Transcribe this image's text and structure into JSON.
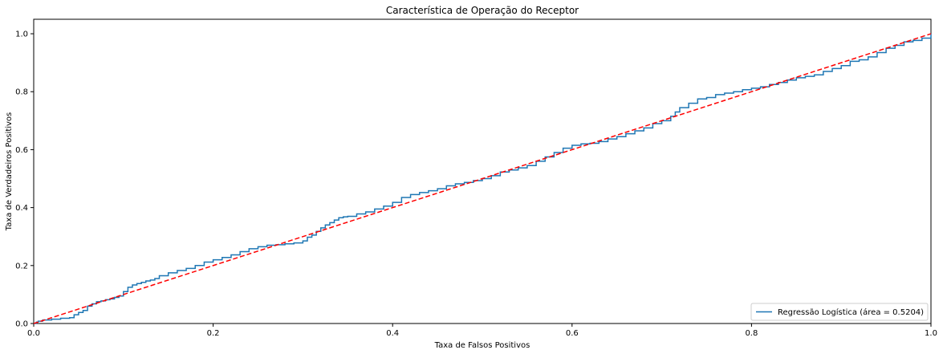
{
  "chart_data": {
    "type": "line",
    "title": "Característica de Operação do Receptor",
    "xlabel": "Taxa de Falsos Positivos",
    "ylabel": "Taxa de Verdadeiros Positivos",
    "xlim": [
      0.0,
      1.0
    ],
    "ylim": [
      0.0,
      1.05
    ],
    "xticks": [
      0.0,
      0.2,
      0.4,
      0.6,
      0.8,
      1.0
    ],
    "xtick_labels": [
      "0.0",
      "0.2",
      "0.4",
      "0.6",
      "0.8",
      "1.0"
    ],
    "yticks": [
      0.0,
      0.2,
      0.4,
      0.6,
      0.8,
      1.0
    ],
    "ytick_labels": [
      "0.0",
      "0.2",
      "0.4",
      "0.6",
      "0.8",
      "1.0"
    ],
    "grid": false,
    "legend_position": "lower right",
    "series": [
      {
        "name": "Regressão Logística (área = 0.5204)",
        "color": "#1f77b4",
        "style": "solid",
        "x": [
          0.0,
          0.003,
          0.005,
          0.01,
          0.02,
          0.03,
          0.04,
          0.045,
          0.05,
          0.055,
          0.06,
          0.065,
          0.07,
          0.075,
          0.08,
          0.085,
          0.09,
          0.095,
          0.1,
          0.105,
          0.11,
          0.115,
          0.12,
          0.125,
          0.13,
          0.135,
          0.14,
          0.15,
          0.16,
          0.17,
          0.18,
          0.19,
          0.2,
          0.21,
          0.22,
          0.23,
          0.24,
          0.25,
          0.26,
          0.27,
          0.28,
          0.29,
          0.3,
          0.305,
          0.31,
          0.315,
          0.32,
          0.325,
          0.33,
          0.335,
          0.34,
          0.345,
          0.35,
          0.36,
          0.37,
          0.38,
          0.39,
          0.4,
          0.41,
          0.42,
          0.43,
          0.44,
          0.45,
          0.46,
          0.47,
          0.48,
          0.49,
          0.5,
          0.51,
          0.52,
          0.53,
          0.54,
          0.55,
          0.56,
          0.57,
          0.58,
          0.59,
          0.6,
          0.61,
          0.62,
          0.63,
          0.64,
          0.65,
          0.66,
          0.67,
          0.68,
          0.69,
          0.7,
          0.71,
          0.715,
          0.72,
          0.73,
          0.74,
          0.75,
          0.76,
          0.77,
          0.78,
          0.79,
          0.8,
          0.81,
          0.82,
          0.83,
          0.84,
          0.85,
          0.86,
          0.87,
          0.88,
          0.89,
          0.9,
          0.91,
          0.92,
          0.93,
          0.94,
          0.95,
          0.96,
          0.97,
          0.98,
          0.99,
          1.0
        ],
        "y": [
          0.0,
          0.005,
          0.008,
          0.012,
          0.015,
          0.018,
          0.02,
          0.03,
          0.038,
          0.045,
          0.06,
          0.068,
          0.075,
          0.078,
          0.082,
          0.085,
          0.09,
          0.095,
          0.11,
          0.125,
          0.133,
          0.138,
          0.142,
          0.147,
          0.15,
          0.155,
          0.165,
          0.175,
          0.183,
          0.19,
          0.2,
          0.212,
          0.22,
          0.228,
          0.237,
          0.248,
          0.258,
          0.265,
          0.27,
          0.272,
          0.275,
          0.278,
          0.285,
          0.298,
          0.305,
          0.318,
          0.33,
          0.34,
          0.348,
          0.357,
          0.365,
          0.368,
          0.37,
          0.378,
          0.385,
          0.395,
          0.405,
          0.418,
          0.435,
          0.445,
          0.452,
          0.458,
          0.465,
          0.475,
          0.482,
          0.487,
          0.493,
          0.5,
          0.51,
          0.523,
          0.53,
          0.537,
          0.545,
          0.56,
          0.575,
          0.59,
          0.605,
          0.615,
          0.62,
          0.622,
          0.628,
          0.637,
          0.645,
          0.655,
          0.665,
          0.675,
          0.69,
          0.7,
          0.715,
          0.73,
          0.745,
          0.76,
          0.775,
          0.78,
          0.79,
          0.795,
          0.8,
          0.807,
          0.812,
          0.817,
          0.825,
          0.832,
          0.84,
          0.848,
          0.853,
          0.858,
          0.87,
          0.88,
          0.89,
          0.905,
          0.91,
          0.92,
          0.935,
          0.95,
          0.96,
          0.972,
          0.977,
          0.985,
          1.0
        ]
      },
      {
        "name": "",
        "color": "#ff0000",
        "style": "dashed",
        "x": [
          0.0,
          1.0
        ],
        "y": [
          0.0,
          1.0
        ]
      }
    ]
  }
}
